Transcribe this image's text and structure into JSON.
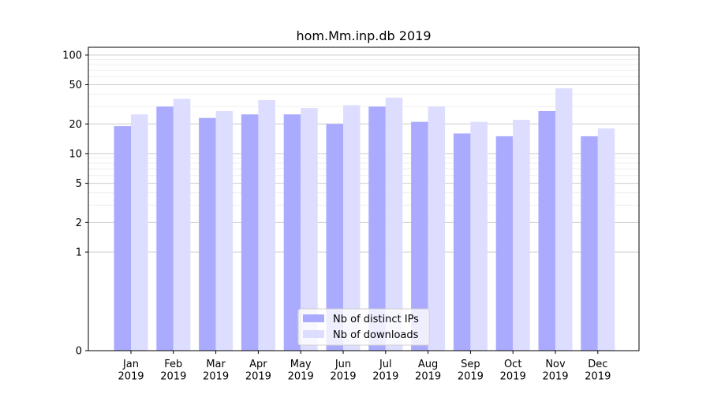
{
  "chart_data": {
    "type": "bar",
    "title": "hom.Mm.inp.db 2019",
    "xlabel": "",
    "ylabel": "",
    "y_scale": "symlog",
    "ylim": [
      0,
      120
    ],
    "y_ticks": [
      0,
      1,
      2,
      5,
      10,
      20,
      50,
      100
    ],
    "y_tick_labels": [
      "0",
      "1",
      "2",
      "5",
      "10",
      "20",
      "50",
      "100"
    ],
    "grid": true,
    "legend_position": "bottom-center",
    "categories": [
      "Jan\n2019",
      "Feb\n2019",
      "Mar\n2019",
      "Apr\n2019",
      "May\n2019",
      "Jun\n2019",
      "Jul\n2019",
      "Aug\n2019",
      "Sep\n2019",
      "Oct\n2019",
      "Nov\n2019",
      "Dec\n2019"
    ],
    "series": [
      {
        "name": "Nb of distinct IPs",
        "color": "#aaaaff",
        "values": [
          19,
          30,
          23,
          25,
          25,
          20,
          30,
          21,
          16,
          15,
          27,
          15
        ]
      },
      {
        "name": "Nb of downloads",
        "color": "#ddddff",
        "values": [
          25,
          36,
          27,
          35,
          29,
          31,
          37,
          30,
          21,
          22,
          46,
          18
        ]
      }
    ]
  }
}
